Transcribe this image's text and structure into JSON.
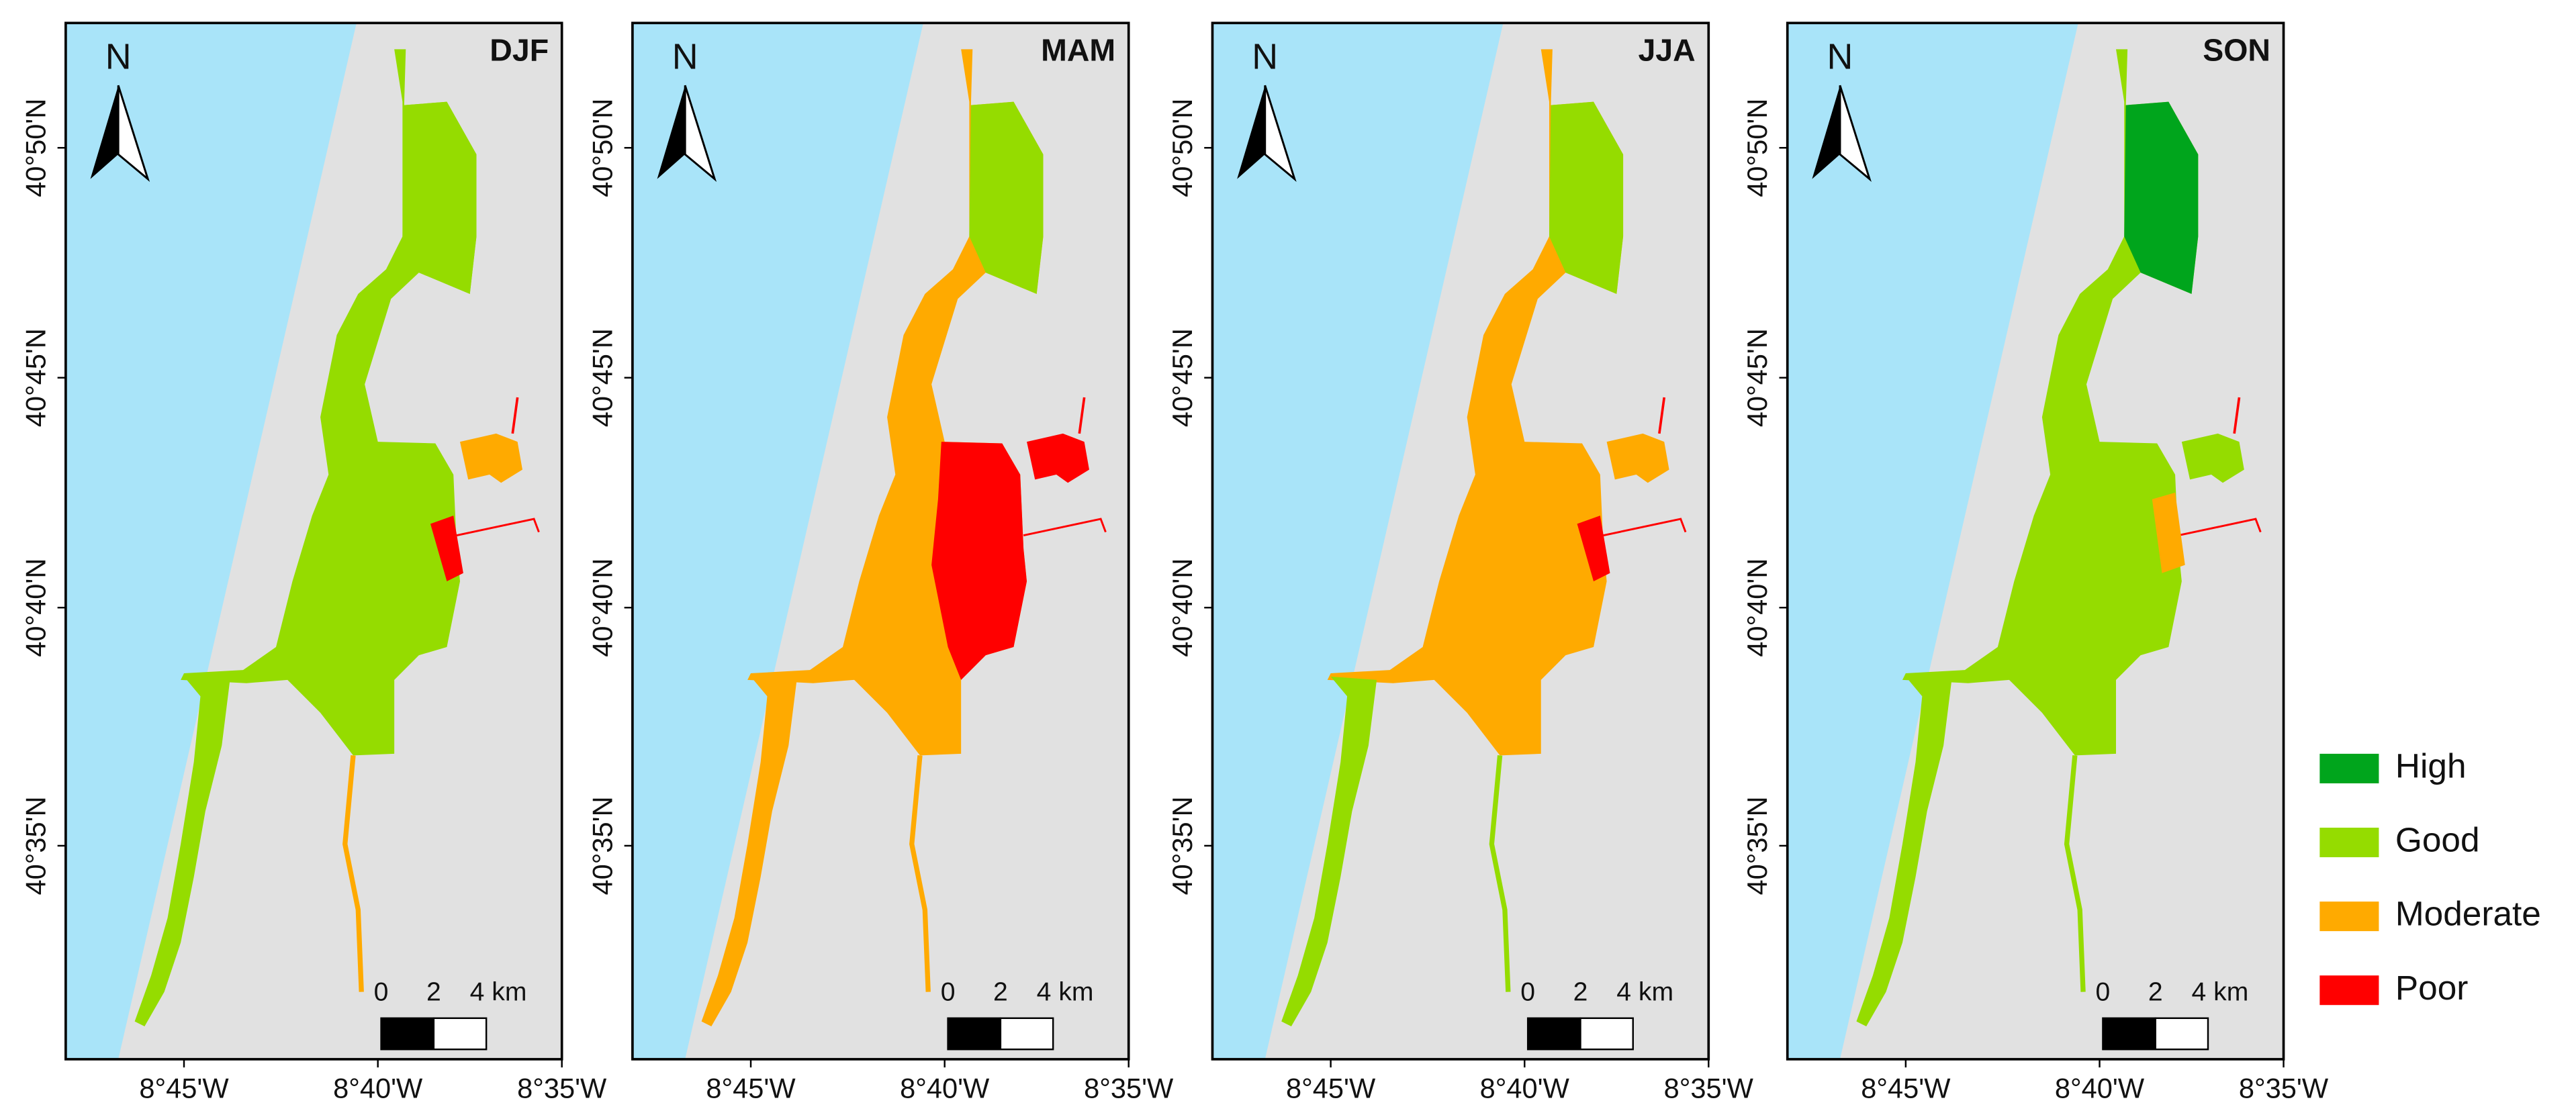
{
  "panels": [
    {
      "season": "DJF",
      "north": "N",
      "lat_labels": [
        "40°50'N",
        "40°45'N",
        "40°40'N",
        "40°35'N"
      ],
      "lon_labels": [
        "8°45'W",
        "8°40'W",
        "8°35'W"
      ],
      "scale_labels": [
        "0",
        "2",
        "4 km"
      ]
    },
    {
      "season": "MAM",
      "north": "N",
      "lat_labels": [
        "40°50'N",
        "40°45'N",
        "40°40'N",
        "40°35'N"
      ],
      "lon_labels": [
        "8°45'W",
        "8°40'W",
        "8°35'W"
      ],
      "scale_labels": [
        "0",
        "2",
        "4 km"
      ]
    },
    {
      "season": "JJA",
      "north": "N",
      "lat_labels": [
        "40°50'N",
        "40°45'N",
        "40°40'N",
        "40°35'N"
      ],
      "lon_labels": [
        "8°45'W",
        "8°40'W",
        "8°35'W"
      ],
      "scale_labels": [
        "0",
        "2",
        "4 km"
      ]
    },
    {
      "season": "SON",
      "north": "N",
      "lat_labels": [
        "40°50'N",
        "40°45'N",
        "40°40'N",
        "40°35'N"
      ],
      "lon_labels": [
        "8°45'W",
        "8°40'W",
        "8°35'W"
      ],
      "scale_labels": [
        "0",
        "2",
        "4 km"
      ]
    }
  ],
  "legend": [
    {
      "label": "High",
      "color": "#00a51c"
    },
    {
      "label": "Good",
      "color": "#95dc00"
    },
    {
      "label": "Moderate",
      "color": "#ffaa00"
    },
    {
      "label": "Poor",
      "color": "#ff0000"
    }
  ]
}
